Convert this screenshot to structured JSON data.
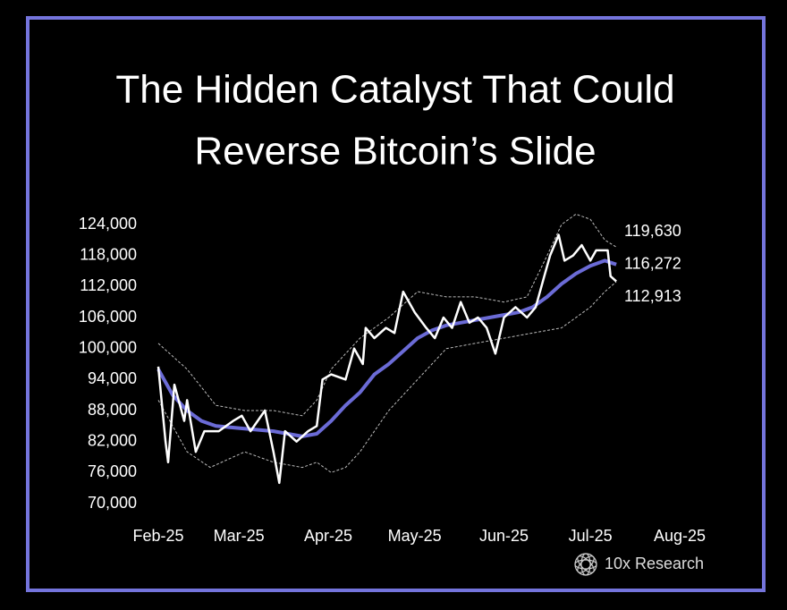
{
  "chart_data": {
    "type": "line",
    "title": [
      "The Hidden Catalyst That Could",
      "Reverse Bitcoin’s Slide"
    ],
    "source": "10x Research",
    "xlim": [
      0,
      181
    ],
    "ylim": [
      70000,
      124000
    ],
    "xticks": [
      {
        "value": 0,
        "label": "Feb-25"
      },
      {
        "value": 28,
        "label": "Mar-25"
      },
      {
        "value": 59,
        "label": "Apr-25"
      },
      {
        "value": 89,
        "label": "May-25"
      },
      {
        "value": 120,
        "label": "Jun-25"
      },
      {
        "value": 150,
        "label": "Jul-25"
      },
      {
        "value": 181,
        "label": "Aug-25"
      }
    ],
    "yticks": [
      {
        "value": 124000,
        "label": "124,000"
      },
      {
        "value": 118000,
        "label": "118,000"
      },
      {
        "value": 112000,
        "label": "112,000"
      },
      {
        "value": 106000,
        "label": "106,000"
      },
      {
        "value": 100000,
        "label": "100,000"
      },
      {
        "value": 94000,
        "label": "94,000"
      },
      {
        "value": 88000,
        "label": "88,000"
      },
      {
        "value": 82000,
        "label": "82,000"
      },
      {
        "value": 76000,
        "label": "76,000"
      },
      {
        "value": 70000,
        "label": "70,000"
      }
    ],
    "series": [
      {
        "color": "#bbbbbb",
        "dashed": true,
        "end_label": "119,630",
        "x": [
          0,
          10,
          20,
          30,
          40,
          50,
          55,
          60,
          70,
          80,
          90,
          100,
          110,
          120,
          128,
          135,
          140,
          145,
          150,
          155,
          159
        ],
        "values": [
          101000,
          96000,
          89000,
          88000,
          88000,
          87000,
          90000,
          96000,
          102000,
          106000,
          111000,
          110000,
          110000,
          109000,
          110000,
          118000,
          124000,
          126000,
          125000,
          121000,
          119630
        ]
      },
      {
        "color": "#6b6bd6",
        "width": 4,
        "end_label": "116,272",
        "x": [
          0,
          5,
          10,
          15,
          20,
          30,
          40,
          50,
          55,
          60,
          65,
          70,
          75,
          80,
          85,
          90,
          95,
          100,
          105,
          110,
          115,
          120,
          125,
          130,
          135,
          140,
          145,
          150,
          155,
          159
        ],
        "values": [
          96000,
          91000,
          88000,
          86000,
          85000,
          84500,
          84000,
          83000,
          83500,
          86000,
          89000,
          91500,
          95000,
          97000,
          99500,
          102000,
          103500,
          104500,
          105000,
          105500,
          106000,
          106500,
          107000,
          108000,
          110000,
          112500,
          114500,
          116000,
          117000,
          116272
        ]
      },
      {
        "color": "#bbbbbb",
        "dashed": true,
        "end_label": "112,913",
        "x": [
          0,
          10,
          18,
          30,
          40,
          50,
          55,
          60,
          65,
          70,
          80,
          90,
          95,
          100,
          110,
          120,
          130,
          140,
          150,
          155,
          159
        ],
        "values": [
          90000,
          80000,
          77000,
          80000,
          78000,
          77000,
          78000,
          76000,
          77000,
          80000,
          88000,
          94000,
          97000,
          100000,
          101000,
          102000,
          103000,
          104000,
          108000,
          111000,
          112913
        ]
      },
      {
        "color": "#ffffff",
        "width": 2.5,
        "x": [
          0,
          2.5,
          3.4,
          5.6,
          9,
          10,
          13,
          16,
          21,
          26,
          29,
          32,
          37,
          40,
          42,
          44,
          48,
          52,
          55,
          57,
          60,
          65,
          68,
          71,
          72,
          75,
          79,
          82,
          85,
          89,
          93,
          96,
          99,
          102,
          105,
          108,
          111,
          114,
          117,
          120,
          124,
          128,
          131,
          134,
          136,
          139,
          141,
          144,
          147,
          150,
          152,
          156,
          157,
          159
        ],
        "values": [
          96500,
          82000,
          78000,
          93000,
          86000,
          90000,
          80000,
          84000,
          84000,
          86000,
          87000,
          84000,
          88000,
          80000,
          74000,
          84000,
          82000,
          84000,
          85000,
          94000,
          95000,
          94000,
          100000,
          97000,
          104000,
          102000,
          104000,
          103000,
          111000,
          107000,
          104000,
          102000,
          106000,
          104000,
          109000,
          105000,
          106000,
          104000,
          99000,
          106000,
          108000,
          106000,
          108000,
          114000,
          118000,
          122000,
          117000,
          118000,
          120000,
          117000,
          119000,
          119000,
          114000,
          113000
        ]
      }
    ]
  }
}
